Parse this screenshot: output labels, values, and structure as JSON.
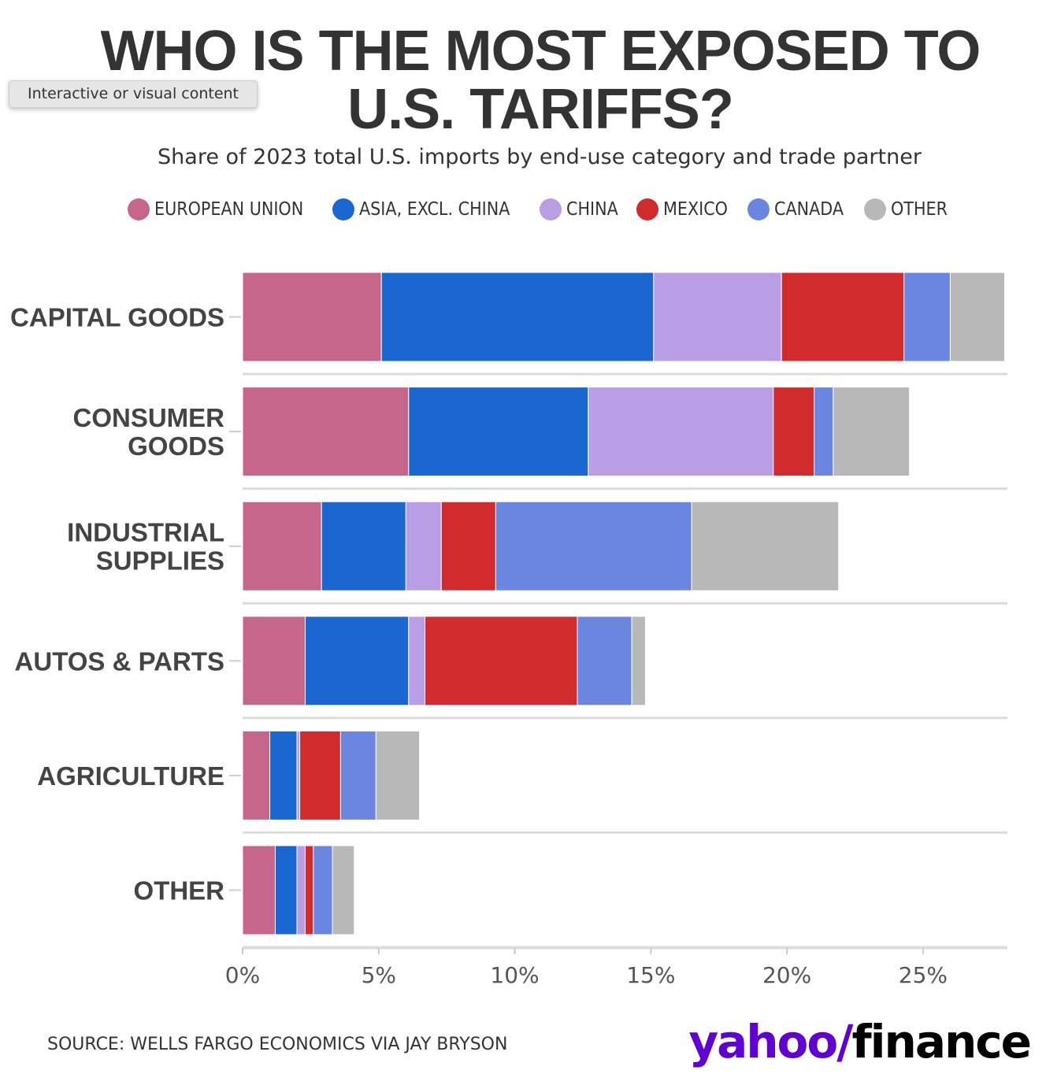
{
  "title": {
    "line1": "WHO IS THE MOST EXPOSED TO",
    "line2": "U.S. TARIFFS?"
  },
  "subtitle": "Share of 2023 total U.S. imports by end-use category and trade partner",
  "tooltip": "Interactive or visual content",
  "source": "SOURCE: WELLS FARGO ECONOMICS VIA JAY BRYSON",
  "brand": {
    "yahoo": "yahoo/",
    "finance": "finance"
  },
  "colors": {
    "european_union": "#c6668a",
    "asia_excl_china": "#1a67d1",
    "china": "#b99ee6",
    "mexico": "#d22b2d",
    "canada": "#6b86e0",
    "other": "#b8b8b8"
  },
  "legend": [
    {
      "label": "EUROPEAN UNION",
      "color": "#c6668a"
    },
    {
      "label": "ASIA, EXCL. CHINA",
      "color": "#1a67d1"
    },
    {
      "label": "CHINA",
      "color": "#b99ee6"
    },
    {
      "label": "MEXICO",
      "color": "#d22b2d"
    },
    {
      "label": "CANADA",
      "color": "#6b86e0"
    },
    {
      "label": "OTHER",
      "color": "#b8b8b8"
    }
  ],
  "chart_data": {
    "type": "bar",
    "orientation": "horizontal",
    "stacked": true,
    "title": "WHO IS THE MOST EXPOSED TO U.S. TARIFFS?",
    "subtitle": "Share of 2023 total U.S. imports by end-use category and trade partner",
    "categories": [
      [
        "CAPITAL GOODS"
      ],
      [
        "CONSUMER",
        "GOODS"
      ],
      [
        "INDUSTRIAL",
        "SUPPLIES"
      ],
      [
        "AUTOS & PARTS"
      ],
      [
        "AGRICULTURE"
      ],
      [
        "OTHER"
      ]
    ],
    "series": [
      {
        "name": "EUROPEAN UNION",
        "color": "#c6668a",
        "values": [
          5.1,
          6.1,
          2.9,
          2.3,
          1.0,
          1.2
        ]
      },
      {
        "name": "ASIA, EXCL. CHINA",
        "color": "#1a67d1",
        "values": [
          10.0,
          6.6,
          3.1,
          3.8,
          1.0,
          0.8
        ]
      },
      {
        "name": "CHINA",
        "color": "#b99ee6",
        "values": [
          4.7,
          6.8,
          1.3,
          0.6,
          0.1,
          0.3
        ]
      },
      {
        "name": "MEXICO",
        "color": "#d22b2d",
        "values": [
          4.5,
          1.5,
          2.0,
          5.6,
          1.5,
          0.3
        ]
      },
      {
        "name": "CANADA",
        "color": "#6b86e0",
        "values": [
          1.7,
          0.7,
          7.2,
          2.0,
          1.3,
          0.7
        ]
      },
      {
        "name": "OTHER",
        "color": "#b8b8b8",
        "values": [
          2.0,
          2.8,
          5.4,
          0.5,
          1.6,
          0.8
        ]
      }
    ],
    "x_ticks": [
      "0%",
      "5%",
      "10%",
      "15%",
      "20%",
      "25%"
    ],
    "x_tick_values": [
      0,
      5,
      10,
      15,
      20,
      25
    ],
    "xlim": [
      0,
      28.1
    ],
    "grid": false,
    "legend_position": "top"
  }
}
